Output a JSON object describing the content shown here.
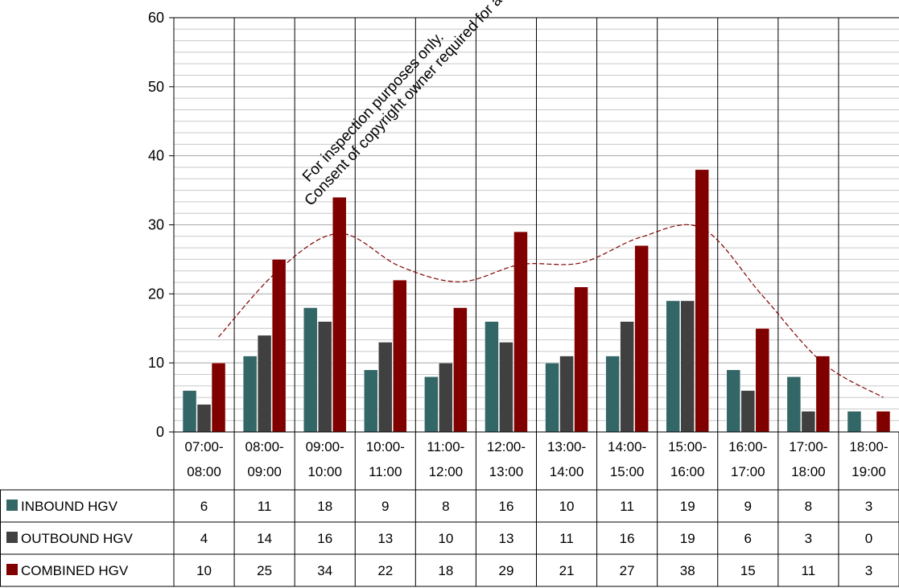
{
  "chart_data": {
    "type": "bar",
    "categories": [
      [
        "07:00-",
        "08:00"
      ],
      [
        "08:00-",
        "09:00"
      ],
      [
        "09:00-",
        "10:00"
      ],
      [
        "10:00-",
        "11:00"
      ],
      [
        "11:00-",
        "12:00"
      ],
      [
        "12:00-",
        "13:00"
      ],
      [
        "13:00-",
        "14:00"
      ],
      [
        "14:00-",
        "15:00"
      ],
      [
        "15:00-",
        "16:00"
      ],
      [
        "16:00-",
        "17:00"
      ],
      [
        "17:00-",
        "18:00"
      ],
      [
        "18:00-",
        "19:00"
      ]
    ],
    "series": [
      {
        "name": "INBOUND HGV",
        "color": "#336666",
        "values": [
          6,
          11,
          18,
          9,
          8,
          16,
          10,
          11,
          19,
          9,
          8,
          3
        ]
      },
      {
        "name": "OUTBOUND HGV",
        "color": "#404040",
        "values": [
          4,
          14,
          16,
          13,
          10,
          13,
          11,
          16,
          19,
          6,
          3,
          0
        ]
      },
      {
        "name": "COMBINED HGV",
        "color": "#800000",
        "values": [
          10,
          25,
          34,
          22,
          18,
          29,
          21,
          27,
          38,
          15,
          11,
          3
        ]
      }
    ],
    "trendline": {
      "of_series": "COMBINED HGV",
      "kind": "polynomial",
      "color": "#800000"
    },
    "ylim": [
      0,
      60
    ],
    "yticks": [
      0,
      10,
      20,
      30,
      40,
      50,
      60
    ],
    "minor_gridlines": 2,
    "grid": true,
    "data_table": true,
    "title": "",
    "xlabel": "",
    "ylabel": ""
  },
  "watermark": {
    "line1": "For inspection purposes only.",
    "line2": "Consent of copyright owner required for any other use."
  }
}
